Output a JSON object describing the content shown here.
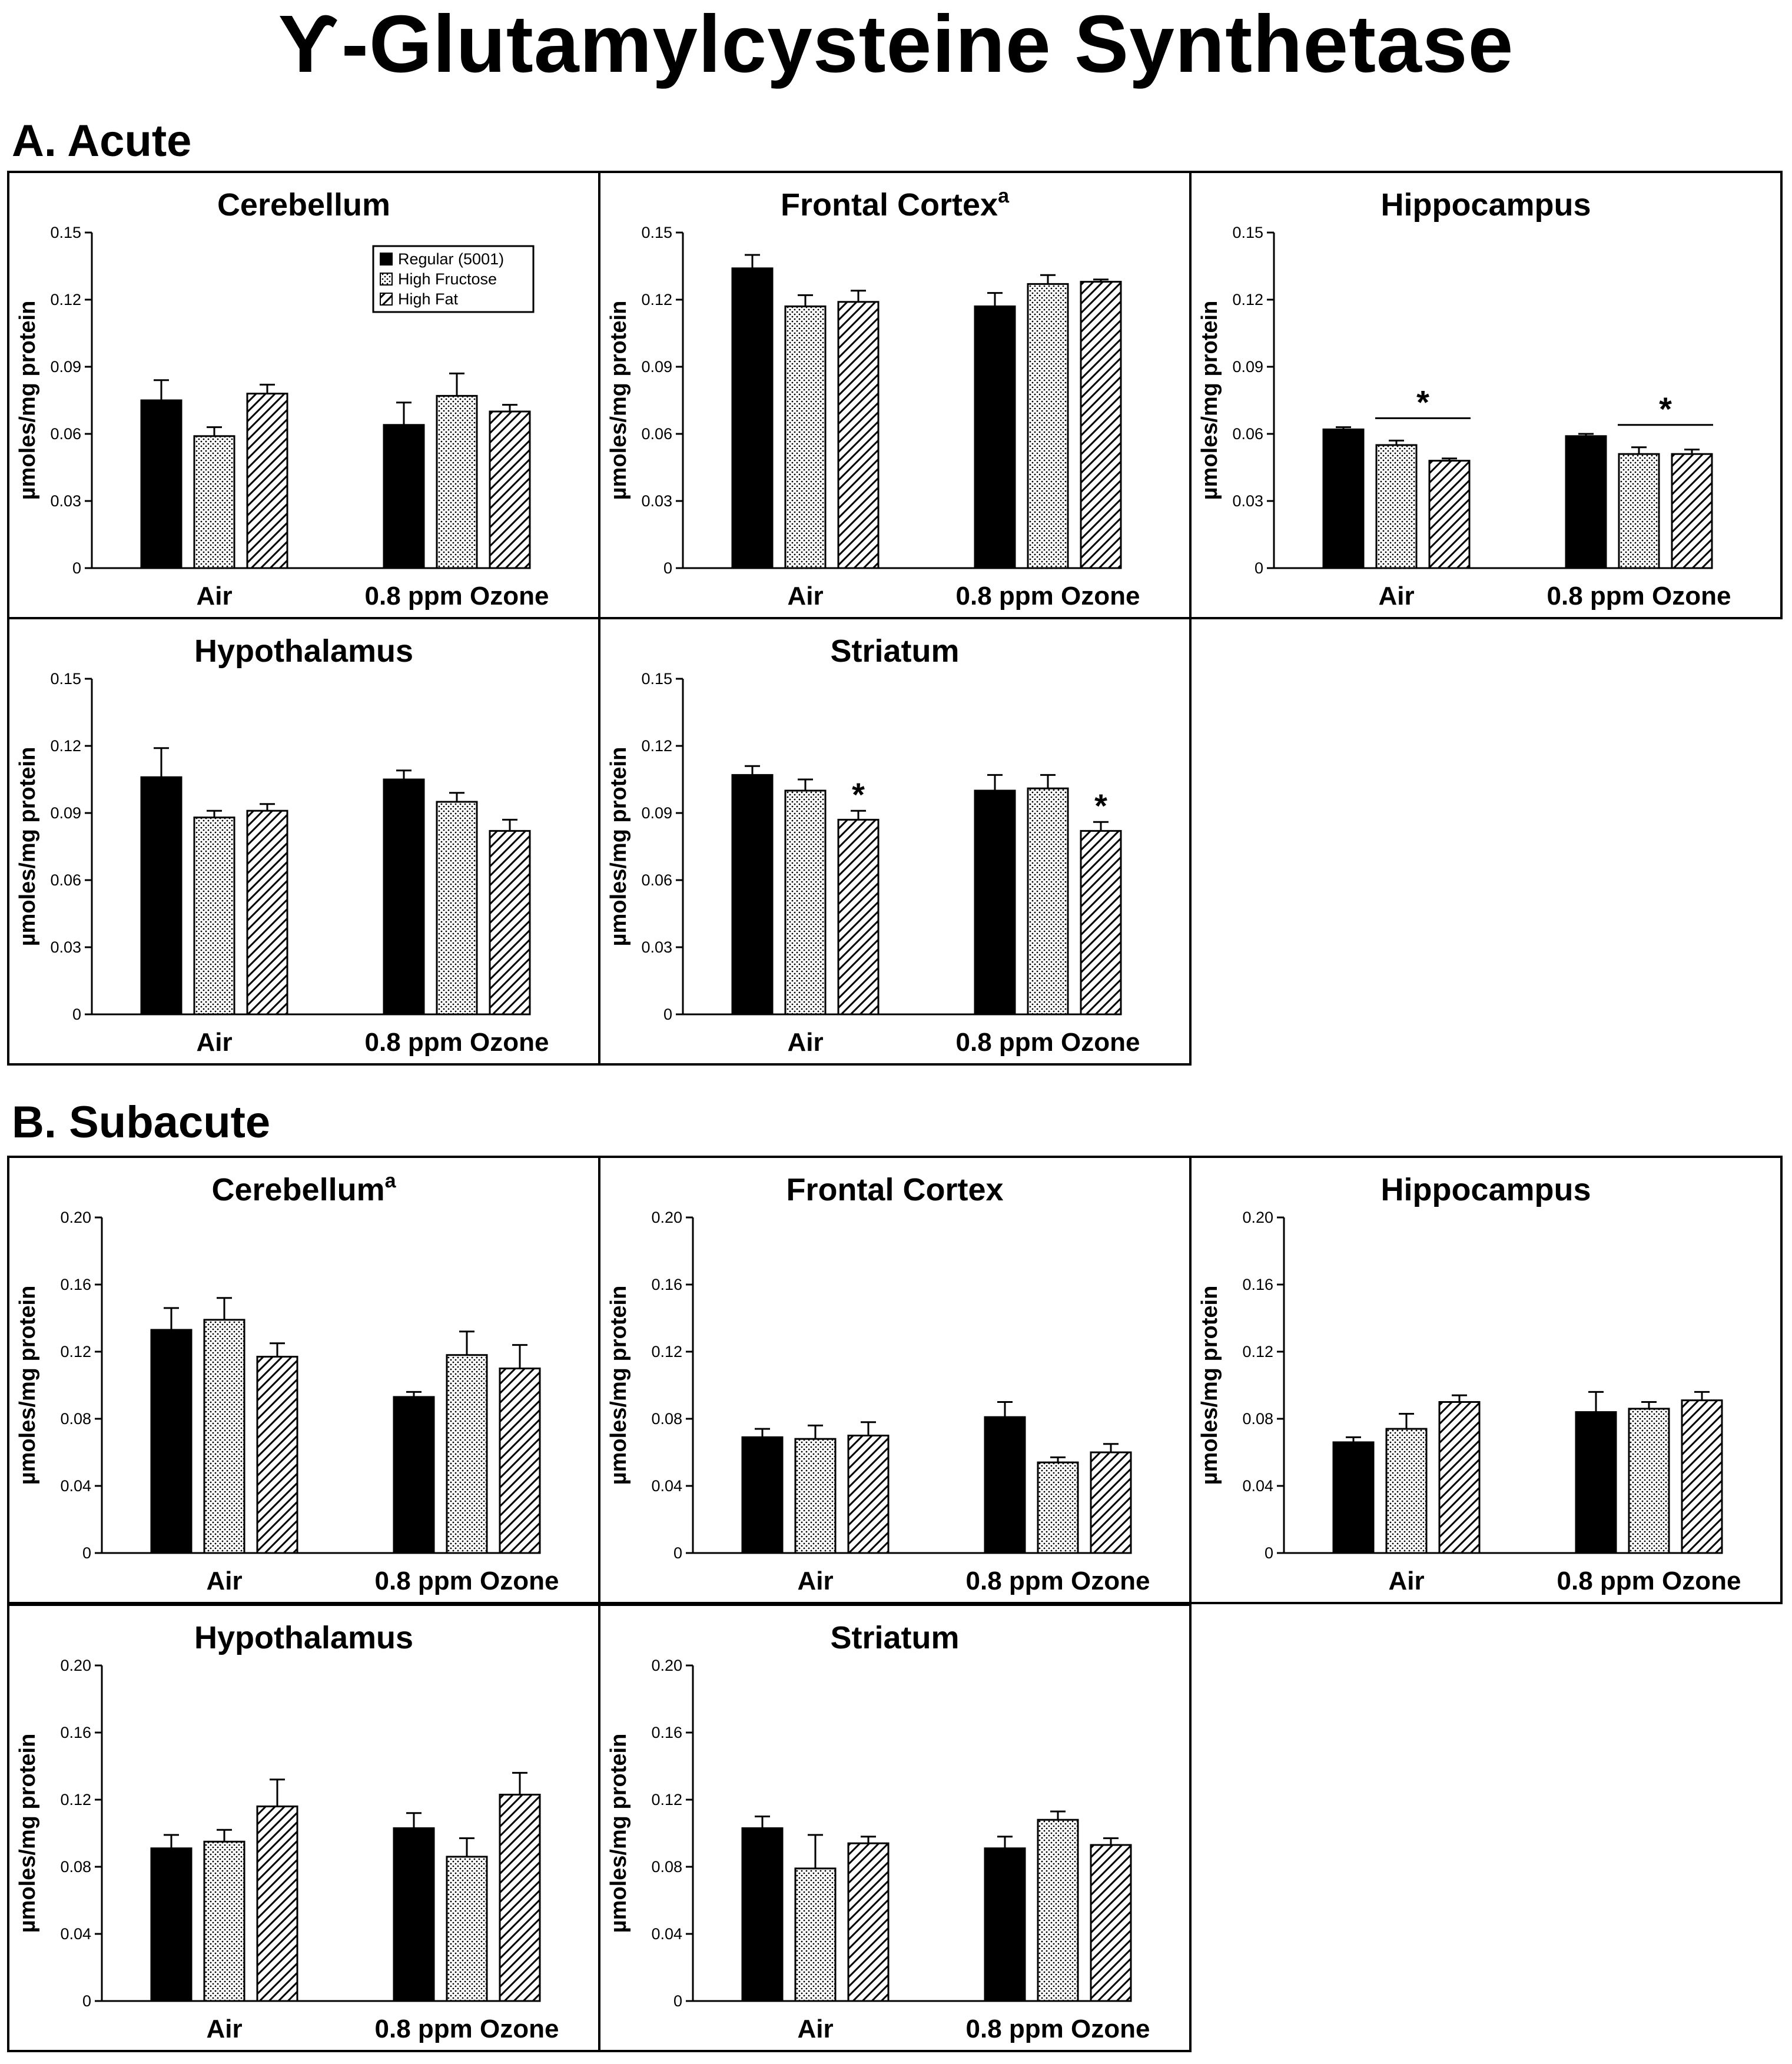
{
  "title": "Ƴ-Glutamylcysteine Synthetase",
  "sections": [
    {
      "id": "A",
      "label": "A. Acute"
    },
    {
      "id": "B",
      "label": "B. Subacute"
    }
  ],
  "legend": [
    "Regular (5001)",
    "High Fructose",
    "High Fat"
  ],
  "ylabel": "µmoles/mg protein",
  "categories": [
    "Air",
    "0.8 ppm Ozone"
  ],
  "chart_data": [
    {
      "type": "bar",
      "section": "A. Acute",
      "title": "Cerebellum",
      "superscript": "",
      "ylabel": "µmoles/mg protein",
      "ylim": [
        0,
        0.15
      ],
      "ticks": [
        "0",
        "0.03",
        "0.06",
        "0.09",
        "0.12",
        "0.15"
      ],
      "categories": [
        "Air",
        "0.8 ppm Ozone"
      ],
      "legend_shown": true,
      "series": [
        {
          "name": "Regular (5001)",
          "values": [
            0.075,
            0.064
          ],
          "errors": [
            0.009,
            0.01
          ]
        },
        {
          "name": "High Fructose",
          "values": [
            0.059,
            0.077
          ],
          "errors": [
            0.004,
            0.01
          ]
        },
        {
          "name": "High Fat",
          "values": [
            0.078,
            0.07
          ],
          "errors": [
            0.004,
            0.003
          ]
        }
      ],
      "annotations": []
    },
    {
      "type": "bar",
      "section": "A. Acute",
      "title": "Frontal Cortex",
      "superscript": "a",
      "ylabel": "µmoles/mg protein",
      "ylim": [
        0,
        0.15
      ],
      "ticks": [
        "0",
        "0.03",
        "0.06",
        "0.09",
        "0.12",
        "0.15"
      ],
      "categories": [
        "Air",
        "0.8 ppm Ozone"
      ],
      "legend_shown": false,
      "series": [
        {
          "name": "Regular (5001)",
          "values": [
            0.134,
            0.117
          ],
          "errors": [
            0.006,
            0.006
          ]
        },
        {
          "name": "High Fructose",
          "values": [
            0.117,
            0.127
          ],
          "errors": [
            0.005,
            0.004
          ]
        },
        {
          "name": "High Fat",
          "values": [
            0.119,
            0.128
          ],
          "errors": [
            0.005,
            0.001
          ]
        }
      ],
      "annotations": []
    },
    {
      "type": "bar",
      "section": "A. Acute",
      "title": "Hippocampus",
      "superscript": "",
      "ylabel": "µmoles/mg protein",
      "ylim": [
        0,
        0.15
      ],
      "ticks": [
        "0",
        "0.03",
        "0.06",
        "0.09",
        "0.12",
        "0.15"
      ],
      "categories": [
        "Air",
        "0.8 ppm Ozone"
      ],
      "legend_shown": false,
      "series": [
        {
          "name": "Regular (5001)",
          "values": [
            0.062,
            0.059
          ],
          "errors": [
            0.001,
            0.001
          ]
        },
        {
          "name": "High Fructose",
          "values": [
            0.055,
            0.051
          ],
          "errors": [
            0.002,
            0.003
          ]
        },
        {
          "name": "High Fat",
          "values": [
            0.048,
            0.051
          ],
          "errors": [
            0.001,
            0.002
          ]
        }
      ],
      "annotations": [
        {
          "type": "bracket",
          "text": "*",
          "group": 0,
          "from": 1,
          "to": 2
        },
        {
          "type": "bracket",
          "text": "*",
          "group": 1,
          "from": 1,
          "to": 2
        }
      ]
    },
    {
      "type": "bar",
      "section": "A. Acute",
      "title": "Hypothalamus",
      "superscript": "",
      "ylabel": "µmoles/mg protein",
      "ylim": [
        0,
        0.15
      ],
      "ticks": [
        "0",
        "0.03",
        "0.06",
        "0.09",
        "0.12",
        "0.15"
      ],
      "categories": [
        "Air",
        "0.8 ppm Ozone"
      ],
      "legend_shown": false,
      "series": [
        {
          "name": "Regular (5001)",
          "values": [
            0.106,
            0.105
          ],
          "errors": [
            0.013,
            0.004
          ]
        },
        {
          "name": "High Fructose",
          "values": [
            0.088,
            0.095
          ],
          "errors": [
            0.003,
            0.004
          ]
        },
        {
          "name": "High Fat",
          "values": [
            0.091,
            0.082
          ],
          "errors": [
            0.003,
            0.005
          ]
        }
      ],
      "annotations": []
    },
    {
      "type": "bar",
      "section": "A. Acute",
      "title": "Striatum",
      "superscript": "",
      "ylabel": "µmoles/mg protein",
      "ylim": [
        0,
        0.15
      ],
      "ticks": [
        "0",
        "0.03",
        "0.06",
        "0.09",
        "0.12",
        "0.15"
      ],
      "categories": [
        "Air",
        "0.8 ppm Ozone"
      ],
      "legend_shown": false,
      "series": [
        {
          "name": "Regular (5001)",
          "values": [
            0.107,
            0.1
          ],
          "errors": [
            0.004,
            0.007
          ]
        },
        {
          "name": "High Fructose",
          "values": [
            0.1,
            0.101
          ],
          "errors": [
            0.005,
            0.006
          ]
        },
        {
          "name": "High Fat",
          "values": [
            0.087,
            0.082
          ],
          "errors": [
            0.004,
            0.004
          ]
        }
      ],
      "annotations": [
        {
          "type": "star",
          "text": "*",
          "group": 0,
          "bar": 2
        },
        {
          "type": "star",
          "text": "*",
          "group": 1,
          "bar": 2
        }
      ]
    },
    {
      "type": "bar",
      "section": "B. Subacute",
      "title": "Cerebellum",
      "superscript": "a",
      "ylabel": "µmoles/mg protein",
      "ylim": [
        0,
        0.2
      ],
      "ticks": [
        "0",
        "0.04",
        "0.08",
        "0.12",
        "0.16",
        "0.20"
      ],
      "categories": [
        "Air",
        "0.8 ppm Ozone"
      ],
      "legend_shown": false,
      "series": [
        {
          "name": "Regular (5001)",
          "values": [
            0.133,
            0.093
          ],
          "errors": [
            0.013,
            0.003
          ]
        },
        {
          "name": "High Fructose",
          "values": [
            0.139,
            0.118
          ],
          "errors": [
            0.013,
            0.014
          ]
        },
        {
          "name": "High Fat",
          "values": [
            0.117,
            0.11
          ],
          "errors": [
            0.008,
            0.014
          ]
        }
      ],
      "annotations": []
    },
    {
      "type": "bar",
      "section": "B. Subacute",
      "title": "Frontal Cortex",
      "superscript": "",
      "ylabel": "µmoles/mg protein",
      "ylim": [
        0,
        0.2
      ],
      "ticks": [
        "0",
        "0.04",
        "0.08",
        "0.12",
        "0.16",
        "0.20"
      ],
      "categories": [
        "Air",
        "0.8 ppm Ozone"
      ],
      "legend_shown": false,
      "series": [
        {
          "name": "Regular (5001)",
          "values": [
            0.069,
            0.081
          ],
          "errors": [
            0.005,
            0.009
          ]
        },
        {
          "name": "High Fructose",
          "values": [
            0.068,
            0.054
          ],
          "errors": [
            0.008,
            0.003
          ]
        },
        {
          "name": "High Fat",
          "values": [
            0.07,
            0.06
          ],
          "errors": [
            0.008,
            0.005
          ]
        }
      ],
      "annotations": []
    },
    {
      "type": "bar",
      "section": "B. Subacute",
      "title": "Hippocampus",
      "superscript": "",
      "ylabel": "µmoles/mg protein",
      "ylim": [
        0,
        0.2
      ],
      "ticks": [
        "0",
        "0.04",
        "0.08",
        "0.12",
        "0.16",
        "0.20"
      ],
      "categories": [
        "Air",
        "0.8 ppm Ozone"
      ],
      "legend_shown": false,
      "series": [
        {
          "name": "Regular (5001)",
          "values": [
            0.066,
            0.084
          ],
          "errors": [
            0.003,
            0.012
          ]
        },
        {
          "name": "High Fructose",
          "values": [
            0.074,
            0.086
          ],
          "errors": [
            0.009,
            0.004
          ]
        },
        {
          "name": "High Fat",
          "values": [
            0.09,
            0.091
          ],
          "errors": [
            0.004,
            0.005
          ]
        }
      ],
      "annotations": []
    },
    {
      "type": "bar",
      "section": "B. Subacute",
      "title": "Hypothalamus",
      "superscript": "",
      "ylabel": "µmoles/mg protein",
      "ylim": [
        0,
        0.2
      ],
      "ticks": [
        "0",
        "0.04",
        "0.08",
        "0.12",
        "0.16",
        "0.20"
      ],
      "categories": [
        "Air",
        "0.8 ppm Ozone"
      ],
      "legend_shown": false,
      "series": [
        {
          "name": "Regular (5001)",
          "values": [
            0.091,
            0.103
          ],
          "errors": [
            0.008,
            0.009
          ]
        },
        {
          "name": "High Fructose",
          "values": [
            0.095,
            0.086
          ],
          "errors": [
            0.007,
            0.011
          ]
        },
        {
          "name": "High Fat",
          "values": [
            0.116,
            0.123
          ],
          "errors": [
            0.016,
            0.013
          ]
        }
      ],
      "annotations": []
    },
    {
      "type": "bar",
      "section": "B. Subacute",
      "title": "Striatum",
      "superscript": "",
      "ylabel": "µmoles/mg protein",
      "ylim": [
        0,
        0.2
      ],
      "ticks": [
        "0",
        "0.04",
        "0.08",
        "0.12",
        "0.16",
        "0.20"
      ],
      "categories": [
        "Air",
        "0.8 ppm Ozone"
      ],
      "legend_shown": false,
      "series": [
        {
          "name": "Regular (5001)",
          "values": [
            0.103,
            0.091
          ],
          "errors": [
            0.007,
            0.007
          ]
        },
        {
          "name": "High Fructose",
          "values": [
            0.079,
            0.108
          ],
          "errors": [
            0.02,
            0.005
          ]
        },
        {
          "name": "High Fat",
          "values": [
            0.094,
            0.093
          ],
          "errors": [
            0.004,
            0.004
          ]
        }
      ],
      "annotations": []
    }
  ]
}
